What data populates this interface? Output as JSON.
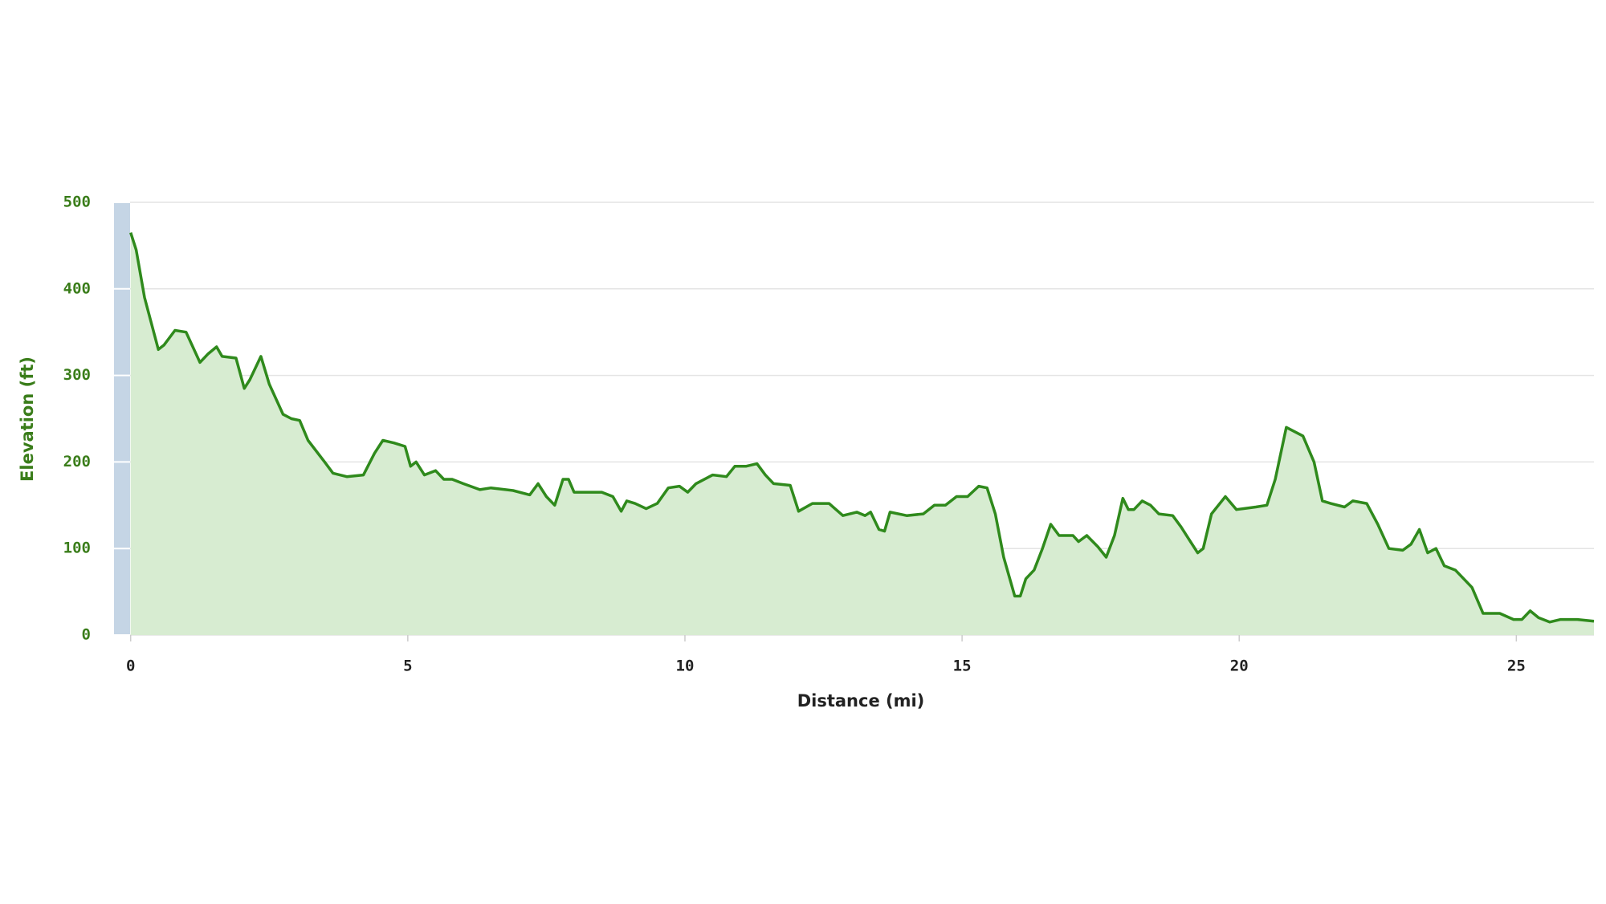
{
  "chart_data": {
    "type": "area",
    "x_label": "Distance (mi)",
    "y_label": "Elevation (ft)",
    "x": [
      0,
      0.1,
      0.25,
      0.5,
      0.6,
      0.8,
      1.0,
      1.25,
      1.4,
      1.55,
      1.65,
      1.9,
      2.05,
      2.15,
      2.35,
      2.5,
      2.75,
      2.9,
      3.05,
      3.2,
      3.5,
      3.65,
      3.9,
      4.2,
      4.4,
      4.55,
      4.75,
      4.95,
      5.05,
      5.15,
      5.3,
      5.5,
      5.65,
      5.8,
      6.0,
      6.3,
      6.5,
      6.9,
      7.2,
      7.35,
      7.5,
      7.65,
      7.8,
      7.9,
      8.0,
      8.3,
      8.5,
      8.7,
      8.85,
      8.95,
      9.1,
      9.3,
      9.5,
      9.7,
      9.9,
      10.05,
      10.2,
      10.5,
      10.75,
      10.9,
      11.1,
      11.3,
      11.45,
      11.6,
      11.9,
      12.05,
      12.3,
      12.6,
      12.85,
      13.1,
      13.25,
      13.35,
      13.5,
      13.6,
      13.7,
      14.0,
      14.3,
      14.5,
      14.7,
      14.9,
      15.1,
      15.3,
      15.45,
      15.6,
      15.75,
      15.95,
      16.05,
      16.15,
      16.3,
      16.45,
      16.6,
      16.75,
      17.0,
      17.1,
      17.25,
      17.45,
      17.6,
      17.75,
      17.9,
      18.0,
      18.1,
      18.25,
      18.4,
      18.55,
      18.8,
      18.95,
      19.1,
      19.25,
      19.35,
      19.5,
      19.75,
      19.95,
      20.3,
      20.5,
      20.65,
      20.85,
      21.0,
      21.15,
      21.35,
      21.5,
      21.65,
      21.9,
      22.05,
      22.3,
      22.5,
      22.7,
      22.95,
      23.1,
      23.25,
      23.4,
      23.55,
      23.7,
      23.9,
      24.2,
      24.4,
      24.7,
      24.95,
      25.1,
      25.25,
      25.4,
      25.6,
      25.8,
      26.1,
      26.4
    ],
    "values": [
      465,
      445,
      390,
      330,
      335,
      352,
      350,
      315,
      325,
      333,
      322,
      320,
      285,
      295,
      322,
      290,
      255,
      250,
      248,
      225,
      200,
      187,
      183,
      185,
      210,
      225,
      222,
      218,
      195,
      200,
      185,
      190,
      180,
      180,
      175,
      168,
      170,
      167,
      162,
      175,
      160,
      150,
      180,
      180,
      165,
      165,
      165,
      160,
      143,
      155,
      152,
      146,
      152,
      170,
      172,
      165,
      175,
      185,
      183,
      195,
      195,
      198,
      185,
      175,
      173,
      143,
      152,
      152,
      138,
      142,
      138,
      142,
      122,
      120,
      142,
      138,
      140,
      150,
      150,
      160,
      160,
      172,
      170,
      140,
      90,
      45,
      45,
      65,
      75,
      100,
      128,
      115,
      115,
      108,
      115,
      102,
      90,
      115,
      158,
      145,
      145,
      155,
      150,
      140,
      138,
      125,
      110,
      95,
      100,
      140,
      160,
      145,
      148,
      150,
      180,
      240,
      235,
      230,
      200,
      155,
      152,
      148,
      155,
      152,
      128,
      100,
      98,
      105,
      122,
      95,
      100,
      80,
      75,
      55,
      25,
      25,
      18,
      18,
      28,
      20,
      15,
      18,
      18,
      16
    ],
    "color": "#2f8a1c",
    "fill_color": "#d7ecd1",
    "xlim": [
      -0.3,
      26.4
    ],
    "ylim": [
      0,
      500
    ],
    "xticks": [
      0,
      5,
      10,
      15,
      20,
      25
    ],
    "yticks": [
      0,
      100,
      200,
      300,
      400,
      500
    ],
    "grid": true
  }
}
